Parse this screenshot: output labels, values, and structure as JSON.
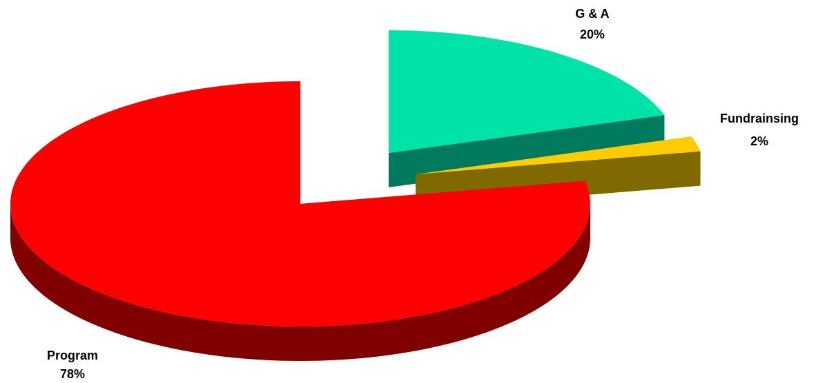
{
  "chart_data": {
    "type": "pie",
    "style": "3d-exploded",
    "title": "",
    "slices": [
      {
        "label": "Program",
        "percent_label": "78%",
        "value": 78,
        "color": "#FF0000",
        "side_color": "#800000"
      },
      {
        "label": "G & A",
        "percent_label": "20%",
        "value": 20,
        "color": "#00E3A8",
        "side_color": "#007A5C"
      },
      {
        "label": "Fundrainsing",
        "percent_label": "2%",
        "value": 2,
        "color": "#FFCC00",
        "side_color": "#806A00"
      }
    ],
    "legend": "none"
  }
}
